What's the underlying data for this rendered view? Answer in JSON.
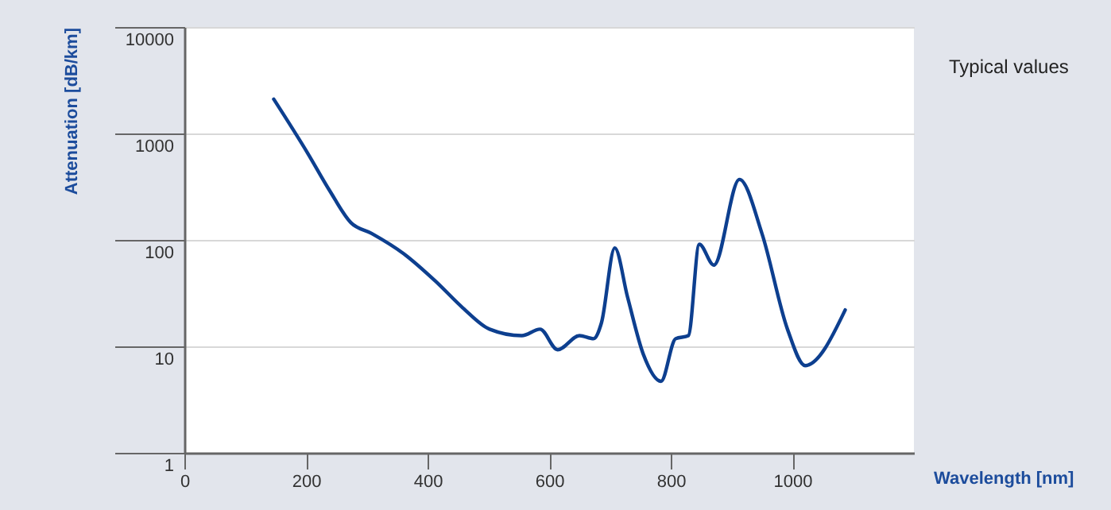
{
  "chart_data": {
    "type": "line",
    "xlabel": "Wavelength [nm]",
    "ylabel": "Attenuation [dB/km]",
    "annotations": [
      "Typical values"
    ],
    "x": [
      147,
      203,
      239,
      274,
      308,
      361,
      413,
      458,
      502,
      555,
      585,
      614,
      650,
      673,
      686,
      708,
      729,
      755,
      784,
      808,
      829,
      847,
      871,
      913,
      950,
      992,
      1021,
      1087
    ],
    "series": [
      {
        "color": "#0d3f8f",
        "values": [
          2100,
          650,
          290,
          145,
          115,
          74,
          41,
          23,
          14.5,
          12.6,
          14.5,
          9.3,
          12.6,
          11.8,
          16.6,
          84,
          29,
          8.4,
          4.7,
          11.8,
          12.6,
          91,
          58,
          370,
          115,
          14.5,
          6.6,
          22
        ]
      }
    ],
    "xlim": [
      0,
      1200
    ],
    "xticks": [
      0,
      200,
      400,
      600,
      800,
      1000
    ],
    "ylim": [
      1,
      10000
    ],
    "yticks": [
      1,
      10,
      100,
      1000,
      10000
    ],
    "log": "y",
    "grid": "y",
    "line_style": "solid",
    "marker": "none"
  }
}
